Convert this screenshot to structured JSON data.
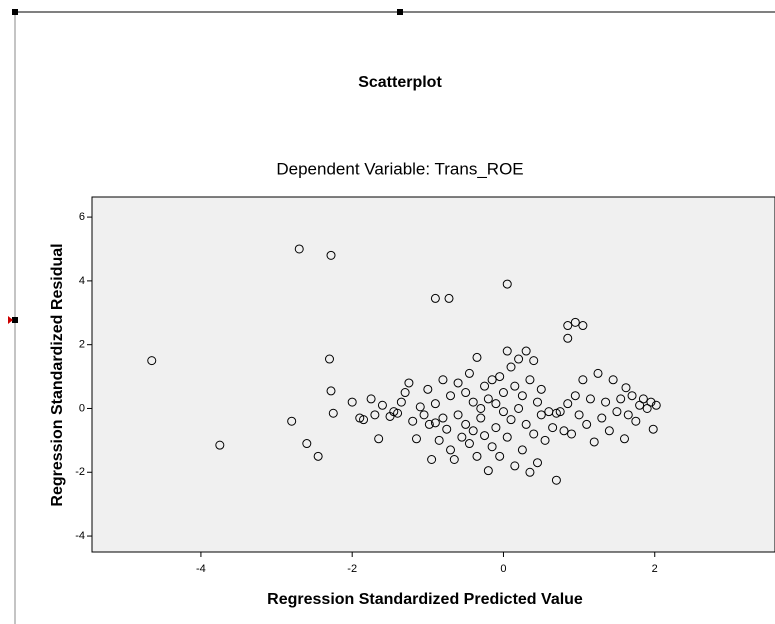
{
  "chart_data": {
    "type": "scatter",
    "title": "Scatterplot",
    "subtitle": "Dependent Variable: Trans_ROE",
    "x_label": "Regression Standardized Predicted Value",
    "y_label": "Regression Standardized Residual",
    "xlim": [
      -5.44,
      3.59
    ],
    "ylim": [
      -4.5,
      6.63
    ],
    "xticks": [
      -4,
      -2,
      0,
      2
    ],
    "yticks": [
      -4,
      -2,
      0,
      2,
      4,
      6
    ],
    "marker_color": "#000000",
    "background": "#f0f0f0",
    "x": [
      -4.65,
      -3.75,
      -2.7,
      -2.28,
      -2.8,
      -2.6,
      -2.45,
      -2.3,
      -2.28,
      -2.25,
      -0.9,
      -0.72,
      0.05,
      0.85,
      0.95,
      1.05,
      0.85,
      0.7,
      -2.0,
      -1.9,
      -1.85,
      -1.75,
      -1.7,
      -1.65,
      -1.6,
      -1.5,
      -1.45,
      -1.4,
      -1.35,
      -1.3,
      -1.25,
      -1.2,
      -1.15,
      -1.1,
      -1.05,
      -1.0,
      -0.98,
      -0.95,
      -0.9,
      -0.9,
      -0.85,
      -0.8,
      -0.8,
      -0.75,
      -0.7,
      -0.7,
      -0.65,
      -0.6,
      -0.6,
      -0.55,
      -0.5,
      -0.5,
      -0.45,
      -0.45,
      -0.4,
      -0.4,
      -0.35,
      -0.35,
      -0.3,
      -0.3,
      -0.25,
      -0.25,
      -0.2,
      -0.2,
      -0.15,
      -0.15,
      -0.1,
      -0.1,
      -0.05,
      -0.05,
      0.0,
      0.0,
      0.05,
      0.05,
      0.1,
      0.1,
      0.15,
      0.15,
      0.2,
      0.2,
      0.25,
      0.25,
      0.3,
      0.3,
      0.35,
      0.35,
      0.4,
      0.4,
      0.45,
      0.45,
      0.5,
      0.5,
      0.55,
      0.6,
      0.65,
      0.7,
      0.75,
      0.8,
      0.85,
      0.9,
      0.95,
      1.0,
      1.05,
      1.1,
      1.15,
      1.2,
      1.25,
      1.3,
      1.35,
      1.4,
      1.45,
      1.5,
      1.55,
      1.6,
      1.62,
      1.65,
      1.7,
      1.75,
      1.8,
      1.85,
      1.9,
      1.95,
      1.98,
      2.02
    ],
    "values": [
      1.5,
      -1.15,
      5.0,
      4.8,
      -0.4,
      -1.1,
      -1.5,
      1.55,
      0.55,
      -0.15,
      3.45,
      3.45,
      3.9,
      2.6,
      2.7,
      2.6,
      2.2,
      -2.25,
      0.2,
      -0.3,
      -0.35,
      0.3,
      -0.2,
      -0.95,
      0.1,
      -0.25,
      -0.1,
      -0.15,
      0.2,
      0.5,
      0.8,
      -0.4,
      -0.95,
      0.05,
      -0.2,
      0.6,
      -0.5,
      -1.6,
      -0.45,
      0.15,
      -1.0,
      0.9,
      -0.3,
      -0.65,
      0.4,
      -1.3,
      -1.6,
      0.8,
      -0.2,
      -0.9,
      0.5,
      -0.5,
      1.1,
      -1.1,
      0.2,
      -0.7,
      1.6,
      -1.5,
      0.0,
      -0.3,
      0.7,
      -0.85,
      -1.95,
      0.3,
      -1.2,
      0.9,
      -0.6,
      0.15,
      -1.5,
      1.0,
      -0.1,
      0.5,
      1.8,
      -0.9,
      1.3,
      -0.35,
      0.7,
      -1.8,
      1.55,
      0.0,
      -1.3,
      0.4,
      1.8,
      -0.5,
      0.9,
      -2.0,
      1.5,
      -0.8,
      0.2,
      -1.7,
      0.6,
      -0.2,
      -1.0,
      -0.1,
      -0.6,
      -0.15,
      -0.1,
      -0.7,
      0.15,
      -0.8,
      0.4,
      -0.2,
      0.9,
      -0.5,
      0.3,
      -1.05,
      1.1,
      -0.3,
      0.2,
      -0.7,
      0.9,
      -0.1,
      0.3,
      -0.95,
      0.65,
      -0.2,
      0.4,
      -0.4,
      0.1,
      0.3,
      0.0,
      0.2,
      -0.65,
      0.1
    ]
  }
}
